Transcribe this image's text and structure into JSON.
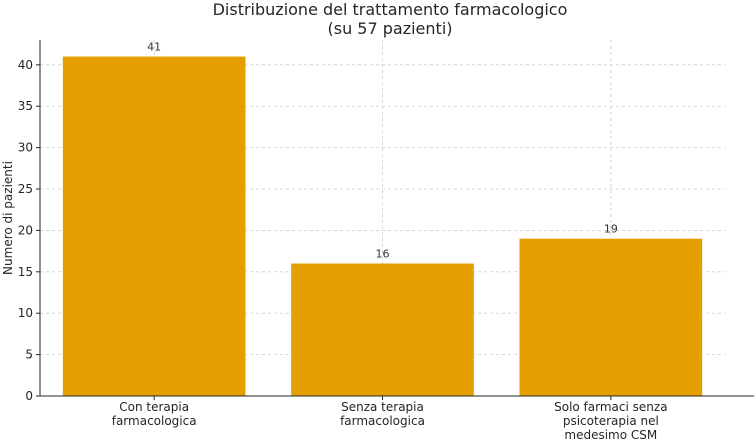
{
  "chart_data": {
    "type": "bar",
    "title": [
      "Distribuzione del trattamento farmacologico",
      "(su 57 pazienti)"
    ],
    "xlabel": "",
    "ylabel": "Numero di pazienti",
    "categories": [
      [
        "Con terapia",
        "farmacologica"
      ],
      [
        "Senza terapia",
        "farmacologica"
      ],
      [
        "Solo farmaci senza",
        "psicoterapia nel",
        "medesimo CSM"
      ]
    ],
    "values": [
      41,
      16,
      19
    ],
    "data_labels": [
      "41",
      "16",
      "19"
    ],
    "ylim": [
      0,
      43
    ],
    "yticks": [
      0,
      5,
      10,
      15,
      20,
      25,
      30,
      35,
      40
    ],
    "grid": true,
    "bar_color": "#E69F00"
  }
}
